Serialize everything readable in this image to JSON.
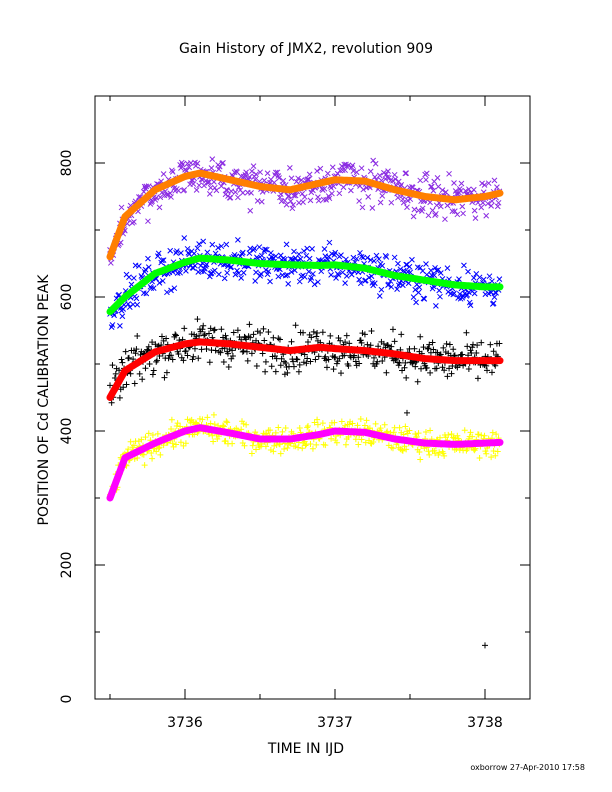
{
  "chart_data": {
    "type": "scatter",
    "title": "Gain History of JMX2, revolution 909",
    "xlabel": "TIME IN IJD",
    "ylabel": "POSITION OF Cd CALIBRATION PEAK",
    "footer": "oxborrow 27-Apr-2010 17:58",
    "xlim": [
      3735.4,
      3738.3
    ],
    "ylim": [
      0,
      900
    ],
    "x_ticks": [
      3736,
      3737,
      3738
    ],
    "x_tick_labels": [
      "3736",
      "3737",
      "3738"
    ],
    "y_ticks": [
      0,
      200,
      400,
      600,
      800
    ],
    "y_tick_labels": [
      "0",
      "200",
      "400",
      "600",
      "800"
    ],
    "grid": false,
    "series": [
      {
        "marker": "x",
        "color": "#8a2be2",
        "trend_color": "#ff7f00",
        "x": [
          3735.5,
          3735.6,
          3735.8,
          3736.0,
          3736.1,
          3736.3,
          3736.5,
          3736.7,
          3736.9,
          3737.0,
          3737.2,
          3737.4,
          3737.6,
          3737.8,
          3738.0,
          3738.1
        ],
        "trend": [
          660,
          720,
          760,
          780,
          785,
          775,
          765,
          760,
          770,
          775,
          773,
          760,
          750,
          745,
          750,
          755
        ],
        "scatter": 22
      },
      {
        "marker": "x",
        "color": "#0000ff",
        "trend_color": "#00ff00",
        "x": [
          3735.5,
          3735.6,
          3735.8,
          3736.0,
          3736.1,
          3736.3,
          3736.5,
          3736.7,
          3736.9,
          3737.0,
          3737.2,
          3737.4,
          3737.6,
          3737.8,
          3738.0,
          3738.1
        ],
        "trend": [
          578,
          600,
          635,
          652,
          658,
          655,
          650,
          648,
          647,
          648,
          643,
          632,
          625,
          618,
          615,
          615
        ],
        "scatter": 20
      },
      {
        "marker": "+",
        "color": "#000000",
        "trend_color": "#ff0000",
        "x": [
          3735.5,
          3735.6,
          3735.8,
          3736.0,
          3736.1,
          3736.3,
          3736.5,
          3736.7,
          3736.9,
          3737.0,
          3737.2,
          3737.4,
          3737.6,
          3737.8,
          3738.0,
          3738.1
        ],
        "trend": [
          450,
          490,
          518,
          530,
          533,
          530,
          525,
          520,
          525,
          523,
          520,
          515,
          508,
          505,
          505,
          505
        ],
        "scatter": 22,
        "outliers": [
          [
            3737.48,
            427
          ],
          [
            3738.0,
            80
          ]
        ]
      },
      {
        "marker": "+",
        "color": "#ffff00",
        "trend_color": "#ff00ff",
        "x": [
          3735.5,
          3735.6,
          3735.8,
          3736.0,
          3736.1,
          3736.3,
          3736.5,
          3736.7,
          3736.9,
          3737.0,
          3737.2,
          3737.4,
          3737.6,
          3737.8,
          3738.0,
          3738.1
        ],
        "trend": [
          300,
          360,
          382,
          400,
          405,
          397,
          388,
          388,
          395,
          400,
          398,
          388,
          382,
          380,
          382,
          383
        ],
        "scatter": 14
      }
    ]
  }
}
